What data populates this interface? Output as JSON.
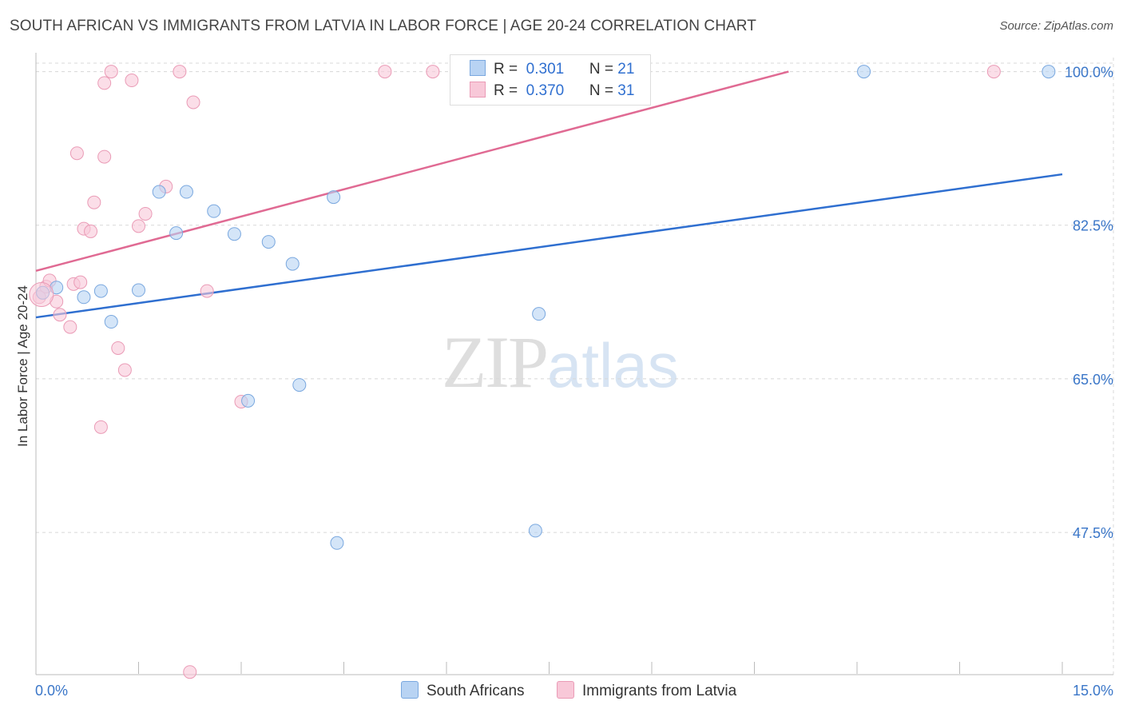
{
  "header": {
    "title": "SOUTH AFRICAN VS IMMIGRANTS FROM LATVIA IN LABOR FORCE | AGE 20-24 CORRELATION CHART",
    "source": "Source: ZipAtlas.com"
  },
  "watermark": {
    "zip": "ZIP",
    "atlas": "atlas"
  },
  "legend": {
    "rows": [
      {
        "r_label": "R =",
        "r_value": "0.301",
        "n_label": "N =",
        "n_value": "21"
      },
      {
        "r_label": "R =",
        "r_value": "0.370",
        "n_label": "N =",
        "n_value": "31"
      }
    ]
  },
  "bottom_legend": {
    "items": [
      {
        "label": "South Africans"
      },
      {
        "label": "Immigrants from Latvia"
      }
    ]
  },
  "colors": {
    "blue_fill": "#b8d3f3",
    "blue_stroke": "#7aa8df",
    "blue_line": "#2f6fd0",
    "pink_fill": "#f8c8d8",
    "pink_stroke": "#ea9bb6",
    "pink_line": "#e06a93",
    "grid": "#d8d8d8",
    "tick_label": "#3a76c8"
  },
  "chart_data": {
    "type": "scatter",
    "title": "SOUTH AFRICAN VS IMMIGRANTS FROM LATVIA IN LABOR FORCE | AGE 20-24 CORRELATION CHART",
    "xlabel": "",
    "ylabel": "In Labor Force | Age 20-24",
    "xlim": [
      0,
      15
    ],
    "ylim": [
      31.3,
      101.6
    ],
    "x_tick_labels": [
      "0.0%",
      "15.0%"
    ],
    "y_ticks": [
      47.5,
      65.0,
      82.5,
      100.0
    ],
    "y_tick_labels": [
      "47.5%",
      "65.0%",
      "82.5%",
      "100.0%"
    ],
    "grid": true,
    "legend_position": "top-center",
    "series": [
      {
        "name": "South Africans",
        "r": 0.301,
        "n": 21,
        "points": [
          [
            0.1,
            74.8
          ],
          [
            0.3,
            75.4
          ],
          [
            0.7,
            74.3
          ],
          [
            0.95,
            75.0
          ],
          [
            1.1,
            71.5
          ],
          [
            1.5,
            75.1
          ],
          [
            1.8,
            86.3
          ],
          [
            2.05,
            81.6
          ],
          [
            2.2,
            86.3
          ],
          [
            2.6,
            84.1
          ],
          [
            2.9,
            81.5
          ],
          [
            3.4,
            80.6
          ],
          [
            3.75,
            78.1
          ],
          [
            4.35,
            85.7
          ],
          [
            3.1,
            62.5
          ],
          [
            3.85,
            64.3
          ],
          [
            4.4,
            46.3
          ],
          [
            7.3,
            47.7
          ],
          [
            7.35,
            72.4
          ],
          [
            12.1,
            100.0
          ],
          [
            14.8,
            100.0
          ]
        ],
        "trend": {
          "x": [
            0,
            15
          ],
          "y": [
            72.0,
            88.3
          ]
        }
      },
      {
        "name": "Immigrants from Latvia",
        "r": 0.37,
        "n": 31,
        "points": [
          [
            0.05,
            74.3
          ],
          [
            0.15,
            75.5
          ],
          [
            0.2,
            76.2
          ],
          [
            0.3,
            73.8
          ],
          [
            0.35,
            72.3
          ],
          [
            0.5,
            70.9
          ],
          [
            0.55,
            75.8
          ],
          [
            0.65,
            76.0
          ],
          [
            0.6,
            90.7
          ],
          [
            0.85,
            85.1
          ],
          [
            0.7,
            82.1
          ],
          [
            0.8,
            81.8
          ],
          [
            1.0,
            90.3
          ],
          [
            1.0,
            98.7
          ],
          [
            1.1,
            100.0
          ],
          [
            1.2,
            68.5
          ],
          [
            1.3,
            66.0
          ],
          [
            1.4,
            99.0
          ],
          [
            1.5,
            82.4
          ],
          [
            1.6,
            83.8
          ],
          [
            1.9,
            86.9
          ],
          [
            2.1,
            100.0
          ],
          [
            2.3,
            96.5
          ],
          [
            2.5,
            75.0
          ],
          [
            3.0,
            62.4
          ],
          [
            5.1,
            100.0
          ],
          [
            5.8,
            100.0
          ],
          [
            7.6,
            100.0
          ],
          [
            14.0,
            100.0
          ],
          [
            0.95,
            59.5
          ],
          [
            2.25,
            31.6
          ]
        ],
        "trend": {
          "x": [
            0,
            11.0
          ],
          "y": [
            77.3,
            100.0
          ]
        }
      }
    ]
  }
}
